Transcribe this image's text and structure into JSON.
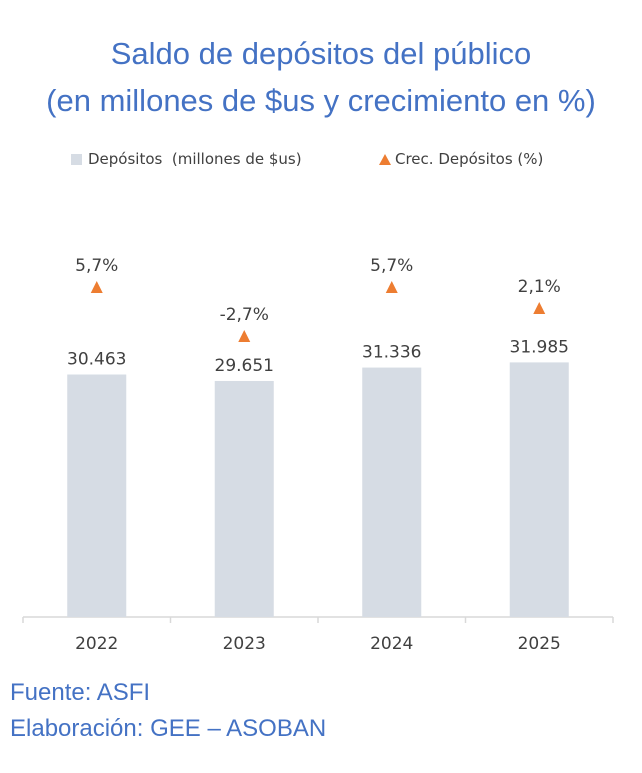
{
  "chart_data": {
    "type": "bar",
    "title": "Saldo de depósitos del público",
    "subtitle": "(en millones de $us y crecimiento en %)",
    "categories": [
      "2022",
      "2023",
      "2024",
      "2025"
    ],
    "series": [
      {
        "name": "Depósitos  (millones de $us)",
        "type": "bar",
        "values": [
          30463,
          29651,
          31336,
          31985
        ],
        "labels": [
          "30.463",
          "29.651",
          "31.336",
          "31.985"
        ],
        "color": "#D6DCE4"
      },
      {
        "name": "Crec. Depósitos (%)",
        "type": "scatter",
        "marker": "triangle",
        "values": [
          5.7,
          -2.7,
          5.7,
          2.1
        ],
        "labels": [
          "5,7%",
          "-2,7%",
          "5,7%",
          "2,1%"
        ],
        "color": "#ED7D31"
      }
    ],
    "xlabel": "",
    "ylabel": "",
    "ylim": [
      0,
      38000
    ],
    "y2lim": [
      -20,
      20
    ],
    "grid": false,
    "legend_position": "top-center",
    "source": "Fuente: ASFI",
    "credit": "Elaboración: GEE – ASOBAN"
  },
  "colors": {
    "title": "#4472C4",
    "bar": "#D6DCE4",
    "marker": "#ED7D31",
    "text": "#404040",
    "axis": "#D9D9D9"
  }
}
